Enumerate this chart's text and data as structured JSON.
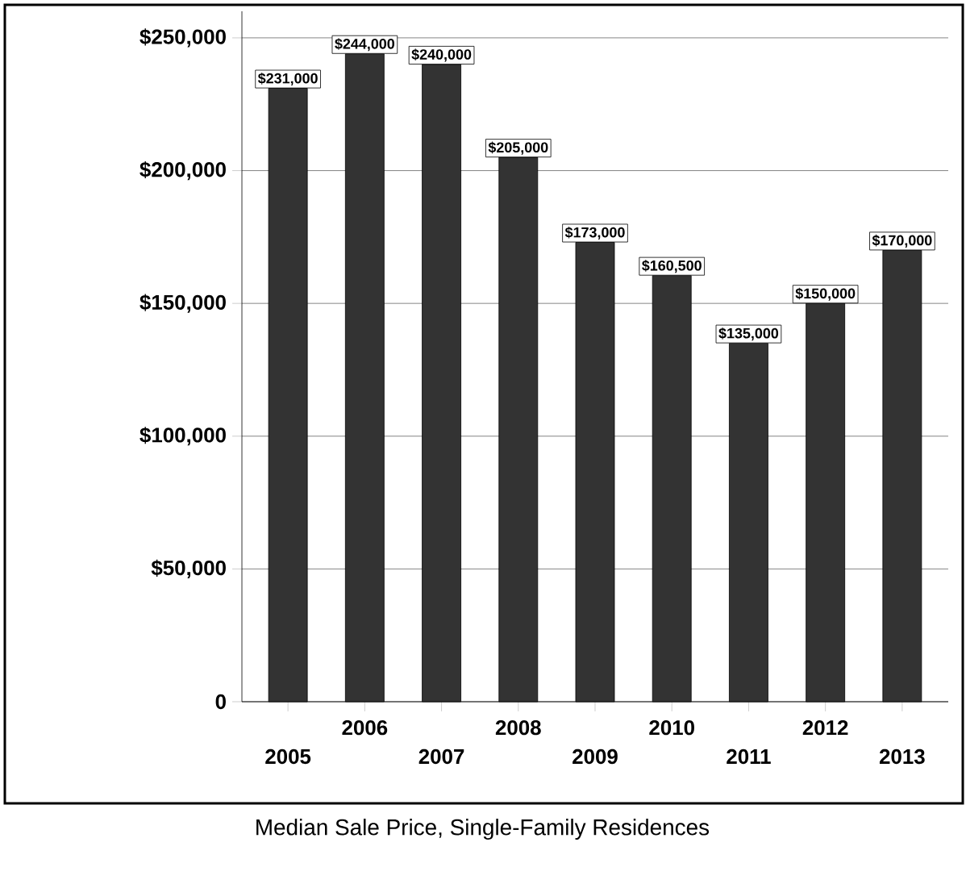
{
  "chart_data": {
    "type": "bar",
    "title": "Median Sale Price, Single-Family Residences",
    "categories": [
      "2005",
      "2006",
      "2007",
      "2008",
      "2009",
      "2010",
      "2011",
      "2012",
      "2013"
    ],
    "values": [
      231000,
      244000,
      240000,
      205000,
      173000,
      160500,
      135000,
      150000,
      170000
    ],
    "value_labels": [
      "$231,000",
      "$244,000",
      "$240,000",
      "$205,000",
      "$173,000",
      "$160,500",
      "$135,000",
      "$150,000",
      "$170,000"
    ],
    "color": "#333333",
    "ylim": [
      0,
      260000
    ],
    "yticks": [
      {
        "value": 0,
        "label": "0"
      },
      {
        "value": 50000,
        "label": "$50,000"
      },
      {
        "value": 100000,
        "label": "$100,000"
      },
      {
        "value": 150000,
        "label": "$150,000"
      },
      {
        "value": 200000,
        "label": "$200,000"
      },
      {
        "value": 250000,
        "label": "$250,000"
      }
    ],
    "grid": "y"
  }
}
